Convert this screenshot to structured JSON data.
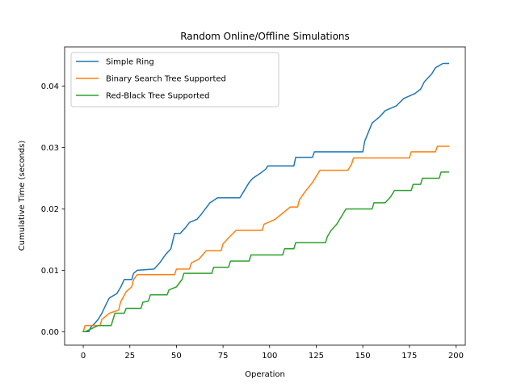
{
  "chart_data": {
    "type": "line",
    "title": "Random Online/Offline Simulations",
    "xlabel": "Operation",
    "ylabel": "Cumulative Time (seconds)",
    "xlim": [
      -10,
      205
    ],
    "ylim": [
      -0.0022,
      0.0464
    ],
    "x_ticks": [
      0,
      25,
      50,
      75,
      100,
      125,
      150,
      175,
      200
    ],
    "x_tick_labels": [
      "0",
      "25",
      "50",
      "75",
      "100",
      "125",
      "150",
      "175",
      "200"
    ],
    "y_ticks": [
      0.0,
      0.01,
      0.02,
      0.03,
      0.04
    ],
    "y_tick_labels": [
      "0.00",
      "0.01",
      "0.02",
      "0.03",
      "0.04"
    ],
    "grid": false,
    "legend_position": "top-left",
    "series": [
      {
        "name": "Simple Ring",
        "color": "#1f77b4",
        "points": [
          [
            0,
            0
          ],
          [
            3,
            0
          ],
          [
            4,
            0.0007
          ],
          [
            6,
            0.0013
          ],
          [
            8,
            0.002
          ],
          [
            10,
            0.003
          ],
          [
            12,
            0.0043
          ],
          [
            14,
            0.0055
          ],
          [
            18,
            0.0062
          ],
          [
            20,
            0.0072
          ],
          [
            22,
            0.0085
          ],
          [
            26,
            0.0085
          ],
          [
            27,
            0.0095
          ],
          [
            29,
            0.01
          ],
          [
            38,
            0.0102
          ],
          [
            41,
            0.0112
          ],
          [
            44,
            0.0125
          ],
          [
            47,
            0.0135
          ],
          [
            49,
            0.016
          ],
          [
            52,
            0.016
          ],
          [
            55,
            0.017
          ],
          [
            57,
            0.0178
          ],
          [
            61,
            0.0183
          ],
          [
            63,
            0.019
          ],
          [
            65,
            0.0198
          ],
          [
            68,
            0.021
          ],
          [
            72,
            0.0218
          ],
          [
            84,
            0.0218
          ],
          [
            86,
            0.0228
          ],
          [
            89,
            0.0243
          ],
          [
            91,
            0.025
          ],
          [
            95,
            0.0258
          ],
          [
            98,
            0.0265
          ],
          [
            99,
            0.027
          ],
          [
            113,
            0.027
          ],
          [
            114,
            0.0284
          ],
          [
            123,
            0.0284
          ],
          [
            124,
            0.0293
          ],
          [
            150,
            0.0293
          ],
          [
            151,
            0.031
          ],
          [
            153,
            0.0325
          ],
          [
            155,
            0.034
          ],
          [
            159,
            0.035
          ],
          [
            162,
            0.036
          ],
          [
            168,
            0.0368
          ],
          [
            172,
            0.038
          ],
          [
            178,
            0.0388
          ],
          [
            181,
            0.0395
          ],
          [
            183,
            0.0407
          ],
          [
            187,
            0.042
          ],
          [
            189,
            0.043
          ],
          [
            193,
            0.0437
          ],
          [
            196,
            0.0437
          ]
        ]
      },
      {
        "name": "Binary Search Tree Supported",
        "color": "#ff7f0e",
        "points": [
          [
            0,
            0
          ],
          [
            1,
            0.001
          ],
          [
            9,
            0.001
          ],
          [
            10,
            0.002
          ],
          [
            14,
            0.003
          ],
          [
            19,
            0.0035
          ],
          [
            20,
            0.0048
          ],
          [
            23,
            0.0065
          ],
          [
            26,
            0.0073
          ],
          [
            27,
            0.0085
          ],
          [
            29,
            0.0093
          ],
          [
            49,
            0.0093
          ],
          [
            50,
            0.0102
          ],
          [
            57,
            0.0102
          ],
          [
            58,
            0.0112
          ],
          [
            62,
            0.0118
          ],
          [
            64,
            0.0125
          ],
          [
            66,
            0.0132
          ],
          [
            74,
            0.0132
          ],
          [
            75,
            0.0143
          ],
          [
            78,
            0.0153
          ],
          [
            82,
            0.0165
          ],
          [
            96,
            0.0165
          ],
          [
            97,
            0.0175
          ],
          [
            103,
            0.0183
          ],
          [
            107,
            0.0193
          ],
          [
            111,
            0.0203
          ],
          [
            115,
            0.0203
          ],
          [
            116,
            0.0215
          ],
          [
            119,
            0.0228
          ],
          [
            123,
            0.0243
          ],
          [
            127,
            0.0263
          ],
          [
            142,
            0.0263
          ],
          [
            144,
            0.0273
          ],
          [
            145,
            0.0283
          ],
          [
            175,
            0.0283
          ],
          [
            176,
            0.0293
          ],
          [
            189,
            0.0293
          ],
          [
            190,
            0.0302
          ],
          [
            196,
            0.0302
          ]
        ]
      },
      {
        "name": "Red-Black Tree Supported",
        "color": "#2ca02c",
        "points": [
          [
            0,
            0
          ],
          [
            1,
            0
          ],
          [
            8,
            0.001
          ],
          [
            15,
            0.001
          ],
          [
            16,
            0.002
          ],
          [
            17,
            0.003
          ],
          [
            22,
            0.003
          ],
          [
            23,
            0.0038
          ],
          [
            31,
            0.0038
          ],
          [
            32,
            0.0048
          ],
          [
            35,
            0.005
          ],
          [
            36,
            0.006
          ],
          [
            45,
            0.006
          ],
          [
            46,
            0.0068
          ],
          [
            50,
            0.0073
          ],
          [
            53,
            0.0085
          ],
          [
            54,
            0.0095
          ],
          [
            69,
            0.0095
          ],
          [
            70,
            0.0105
          ],
          [
            78,
            0.0105
          ],
          [
            79,
            0.0115
          ],
          [
            89,
            0.0115
          ],
          [
            90,
            0.0125
          ],
          [
            107,
            0.0125
          ],
          [
            108,
            0.0135
          ],
          [
            113,
            0.0135
          ],
          [
            114,
            0.0145
          ],
          [
            130,
            0.0145
          ],
          [
            131,
            0.0155
          ],
          [
            133,
            0.0165
          ],
          [
            136,
            0.0175
          ],
          [
            139,
            0.019
          ],
          [
            141,
            0.02
          ],
          [
            155,
            0.02
          ],
          [
            156,
            0.021
          ],
          [
            162,
            0.021
          ],
          [
            165,
            0.022
          ],
          [
            167,
            0.023
          ],
          [
            176,
            0.023
          ],
          [
            177,
            0.024
          ],
          [
            181,
            0.024
          ],
          [
            182,
            0.025
          ],
          [
            191,
            0.025
          ],
          [
            192,
            0.026
          ],
          [
            196,
            0.026
          ]
        ]
      }
    ]
  }
}
